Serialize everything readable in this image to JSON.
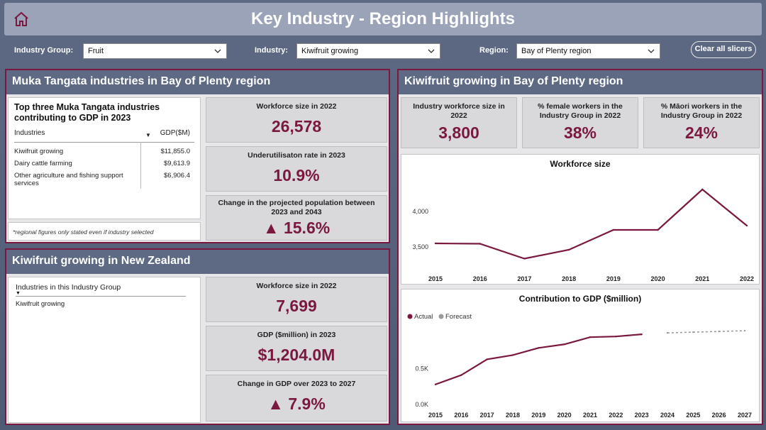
{
  "header": {
    "title": "Key Industry - Region Highlights",
    "home_icon": "home-icon"
  },
  "slicers": {
    "industry_group": {
      "label": "Industry Group:",
      "value": "Fruit"
    },
    "industry": {
      "label": "Industry:",
      "value": "Kiwifruit growing"
    },
    "region": {
      "label": "Region:",
      "value": "Bay of Plenty region"
    },
    "clear_label": "Clear all slicers"
  },
  "muka": {
    "title": "Muka Tangata industries in Bay of Plenty region",
    "table_title": "Top three Muka Tangata industries contributing to GDP in 2023",
    "col_industries": "Industries",
    "col_gdp": "GDP($M)",
    "rows": [
      {
        "industry": "Kiwifruit growing",
        "gdp": "$11,855.0"
      },
      {
        "industry": "Dairy cattle farming",
        "gdp": "$9,613.9"
      },
      {
        "industry": "Other agriculture and fishing support services",
        "gdp": "$6,906.4"
      }
    ],
    "note": "*regional figures only stated even if industry selected",
    "cards": [
      {
        "label": "Workforce size in 2022",
        "value": "26,578"
      },
      {
        "label": "Underutilisaton rate in 2023",
        "value": "10.9%"
      },
      {
        "label": "Change in the projected population between 2023 and 2043",
        "value": "▲ 15.6%"
      }
    ]
  },
  "nz": {
    "title": "Kiwifruit growing in New Zealand",
    "list_header": "Industries in this Industry Group",
    "list_items": [
      "Kiwifruit growing"
    ],
    "cards": [
      {
        "label": "Workforce size in 2022",
        "value": "7,699"
      },
      {
        "label": "GDP ($million) in 2023",
        "value": "$1,204.0M"
      },
      {
        "label": "Change in GDP over 2023 to 2027",
        "value": "▲ 7.9%"
      }
    ]
  },
  "kiwi_bop": {
    "title": "Kiwifruit growing in Bay of Plenty region",
    "cards": [
      {
        "label": "Industry workforce size in 2022",
        "value": "3,800"
      },
      {
        "label": "% female workers in the Industry Group in 2022",
        "value": "38%"
      },
      {
        "label": "% Māori workers in the Industry Group in 2022",
        "value": "24%"
      }
    ]
  },
  "chart_data": [
    {
      "type": "line",
      "title": "Workforce size",
      "x": [
        "2015",
        "2016",
        "2017",
        "2018",
        "2019",
        "2020",
        "2021",
        "2022"
      ],
      "series": [
        {
          "values": [
            3550,
            3545,
            3335,
            3460,
            3740,
            3740,
            4310,
            3800
          ]
        }
      ],
      "yticks": [
        {
          "v": 3500,
          "label": "3,500"
        },
        {
          "v": 4000,
          "label": "4,000"
        }
      ],
      "ylim": [
        3200,
        4500
      ],
      "color": "#7a1840"
    },
    {
      "type": "line",
      "title": "Contribution to GDP ($million)",
      "x": [
        "2015",
        "2016",
        "2017",
        "2018",
        "2019",
        "2020",
        "2021",
        "2022",
        "2023",
        "2024",
        "2025",
        "2026",
        "2027"
      ],
      "series": [
        {
          "name": "Actual",
          "values": [
            0.28,
            0.41,
            0.63,
            0.69,
            0.79,
            0.84,
            0.94,
            0.95,
            0.98,
            null,
            null,
            null,
            null
          ],
          "color": "#7a1840"
        },
        {
          "name": "Forecast",
          "values": [
            null,
            null,
            null,
            null,
            null,
            null,
            null,
            null,
            null,
            1.0,
            1.01,
            1.02,
            1.03
          ],
          "color": "#9a9a9a"
        }
      ],
      "yticks": [
        {
          "v": 0,
          "label": "0.0K"
        },
        {
          "v": 0.5,
          "label": "0.5K"
        }
      ],
      "ylim": [
        0,
        1.15
      ],
      "legend": "top-left"
    }
  ]
}
